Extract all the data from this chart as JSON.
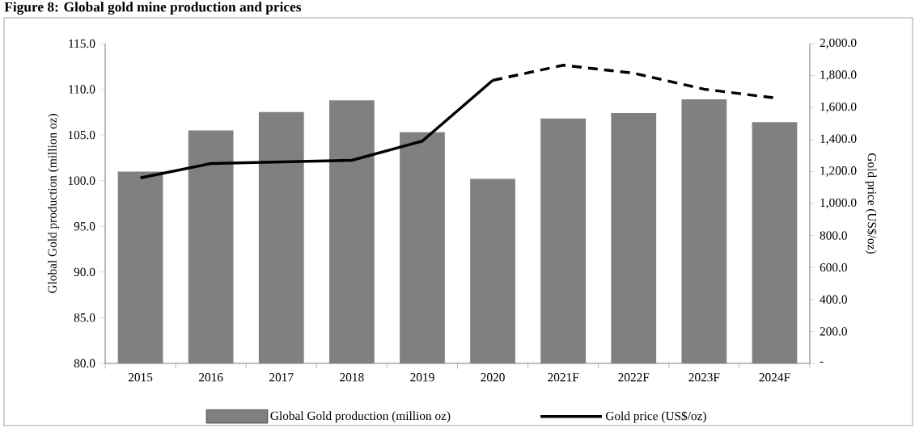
{
  "chart_data": {
    "type": "bar",
    "title": "Figure 8: Global gold mine production and prices",
    "ylabel": "Global Gold production (million oz)",
    "y2label": "Gold price (US$/oz)",
    "categories": [
      "2015",
      "2016",
      "2017",
      "2018",
      "2019",
      "2020",
      "2021F",
      "2022F",
      "2023F",
      "2024F"
    ],
    "series": [
      {
        "name": "Global Gold production (million oz)",
        "color": "#808080",
        "values": [
          101.0,
          105.5,
          107.5,
          108.8,
          105.3,
          100.2,
          106.8,
          107.4,
          108.9,
          106.4
        ]
      },
      {
        "name": "Gold price (US$/oz)",
        "type": "line",
        "axis": "y2",
        "color": "#000000",
        "line_style": "solid",
        "values": [
          1160,
          1250,
          1260,
          1270,
          1390,
          1770,
          null,
          null,
          null,
          null
        ]
      },
      {
        "type": "line",
        "axis": "y2",
        "color": "#000000",
        "line_style": "dashed",
        "values": [
          null,
          null,
          null,
          null,
          null,
          1770,
          1865,
          1815,
          1715,
          1660
        ]
      }
    ],
    "ylim": [
      80,
      115
    ],
    "yticks": [
      {
        "value": 80,
        "label": "80.0"
      },
      {
        "value": 85,
        "label": "85.0"
      },
      {
        "value": 90,
        "label": "90.0"
      },
      {
        "value": 95,
        "label": "95.0"
      },
      {
        "value": 100,
        "label": "100.0"
      },
      {
        "value": 105,
        "label": "105.0"
      },
      {
        "value": 110,
        "label": "110.0"
      },
      {
        "value": 115,
        "label": "115.0"
      }
    ],
    "y2lim": [
      0,
      2000
    ],
    "y2ticks": [
      {
        "value": 0,
        "label": "-"
      },
      {
        "value": 200,
        "label": "200.0"
      },
      {
        "value": 400,
        "label": "400.0"
      },
      {
        "value": 600,
        "label": "600.0"
      },
      {
        "value": 800,
        "label": "800.0"
      },
      {
        "value": 1000,
        "label": "1,000.0"
      },
      {
        "value": 1200,
        "label": "1,200.0"
      },
      {
        "value": 1400,
        "label": "1,400.0"
      },
      {
        "value": 1600,
        "label": "1,600.0"
      },
      {
        "value": 1800,
        "label": "1,800.0"
      },
      {
        "value": 2000,
        "label": "2,000.0"
      }
    ],
    "legend": "bottom"
  }
}
